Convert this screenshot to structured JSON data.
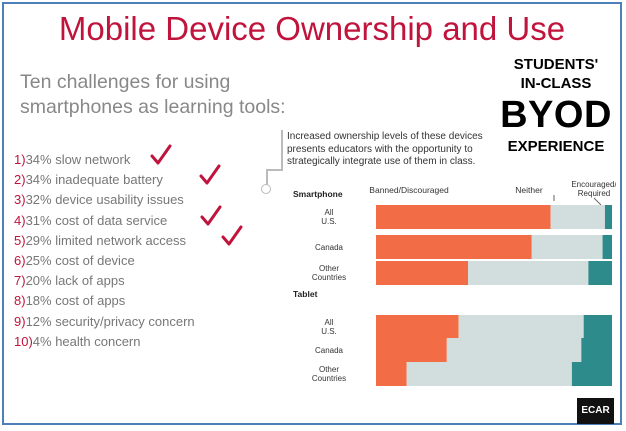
{
  "slide": {
    "title": "Mobile Device Ownership and Use",
    "subtitle": "Ten challenges for using smartphones as learning tools:"
  },
  "challenges": [
    {
      "num": "1)",
      "text": "34% slow network",
      "checked": true
    },
    {
      "num": "2)",
      "text": "34% inadequate battery",
      "checked": true
    },
    {
      "num": "3)",
      "text": "32% device usability issues",
      "checked": false
    },
    {
      "num": "4)",
      "text": "31% cost of data service",
      "checked": true
    },
    {
      "num": "5)",
      "text": "29% limited network access",
      "checked": true
    },
    {
      "num": "6)",
      "text": "25% cost of device",
      "checked": false
    },
    {
      "num": "7)",
      "text": "20% lack of apps",
      "checked": false
    },
    {
      "num": "8)",
      "text": "18% cost of apps",
      "checked": false
    },
    {
      "num": "9)",
      "text": "12% security/privacy concern",
      "checked": false
    },
    {
      "num": "10)",
      "text": "4% health concern",
      "checked": false
    }
  ],
  "byod": {
    "line1": "STUDENTS'",
    "line2": "IN-CLASS",
    "big": "BYOD",
    "line3": "EXPERIENCE"
  },
  "callout": "Increased ownership levels of these devices presents educators with the opportunity to strategically integrate use of them in class.",
  "logo": "ECAR",
  "colors": {
    "title": "#c0143c",
    "check": "#c0143c",
    "banned": "#f26d45",
    "neither": "#d2dedd",
    "encouraged": "#2e8b8c"
  },
  "chart_data": {
    "type": "bar",
    "orientation": "horizontal",
    "stacked": true,
    "legend": [
      "Banned/Discouraged",
      "Neither",
      "Encouraged/ Required"
    ],
    "groups": [
      {
        "name": "Smartphone",
        "categories": [
          "All U.S.",
          "Canada",
          "Other Countries"
        ],
        "series": [
          {
            "name": "Banned/Discouraged",
            "values": [
              74,
              66,
              39
            ]
          },
          {
            "name": "Neither",
            "values": [
              23,
              30,
              51
            ]
          },
          {
            "name": "Encouraged/ Required",
            "values": [
              3,
              4,
              10
            ]
          }
        ]
      },
      {
        "name": "Tablet",
        "categories": [
          "All U.S.",
          "Canada",
          "Other Countries"
        ],
        "series": [
          {
            "name": "Banned/Discouraged",
            "values": [
              35,
              30,
              13
            ]
          },
          {
            "name": "Neither",
            "values": [
              53,
              57,
              70
            ]
          },
          {
            "name": "Encouraged/ Required",
            "values": [
              12,
              13,
              17
            ]
          }
        ]
      }
    ]
  }
}
